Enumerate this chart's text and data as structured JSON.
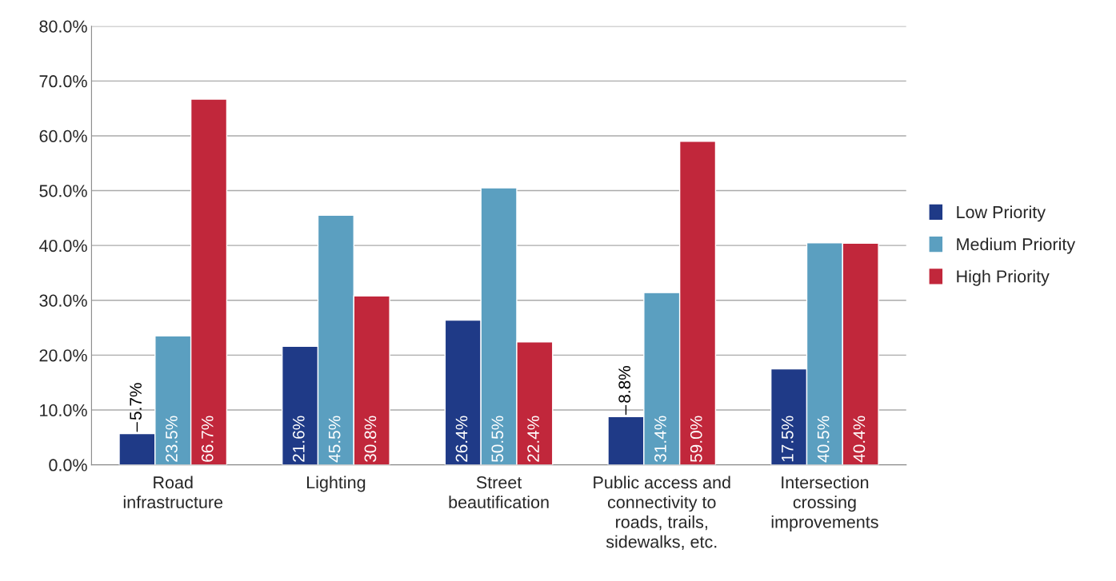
{
  "chart_data": {
    "type": "bar",
    "categories": [
      "Road\ninfrastructure",
      "Lighting",
      "Street\nbeautification",
      "Public access and\nconnectivity to\nroads, trails,\nsidewalks, etc.",
      "Intersection\ncrossing\nimprovements"
    ],
    "series": [
      {
        "name": "Low Priority",
        "color": "#1f3a87",
        "values": [
          5.7,
          21.6,
          26.4,
          8.8,
          17.5
        ],
        "value_labels": [
          "5.7%",
          "21.6%",
          "26.4%",
          "8.8%",
          "17.5%"
        ]
      },
      {
        "name": "Medium Priority",
        "color": "#5b9fc0",
        "values": [
          23.5,
          45.5,
          50.5,
          31.4,
          40.5
        ],
        "value_labels": [
          "23.5%",
          "45.5%",
          "50.5%",
          "31.4%",
          "40.5%"
        ]
      },
      {
        "name": "High Priority",
        "color": "#c1273b",
        "values": [
          66.7,
          30.8,
          22.4,
          59.0,
          40.4
        ],
        "value_labels": [
          "66.7%",
          "30.8%",
          "22.4%",
          "59.0%",
          "40.4%"
        ]
      }
    ],
    "ylim": [
      0,
      80
    ],
    "yticks": [
      {
        "value": 0,
        "label": "0.0%"
      },
      {
        "value": 10,
        "label": "10.0%"
      },
      {
        "value": 20,
        "label": "20.0%"
      },
      {
        "value": 30,
        "label": "30.0%"
      },
      {
        "value": 40,
        "label": "40.0%"
      },
      {
        "value": 50,
        "label": "50.0%"
      },
      {
        "value": 60,
        "label": "60.0%"
      },
      {
        "value": 70,
        "label": "70.0%"
      },
      {
        "value": 80,
        "label": "80.0%"
      }
    ],
    "grid": "y",
    "legend": "right"
  }
}
